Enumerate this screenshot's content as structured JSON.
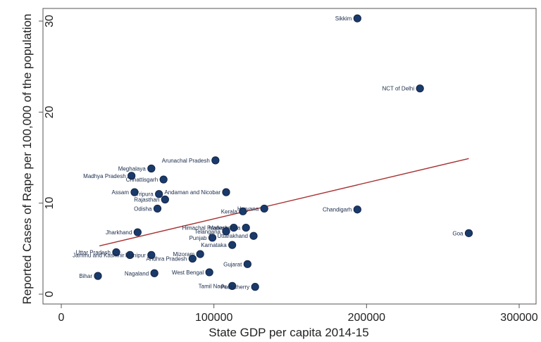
{
  "chart_data": {
    "type": "scatter",
    "title": "",
    "xlabel": "State GDP per capita 2014-15",
    "ylabel": "Reported Cases of Rape per 100,000 of the population",
    "xlim": [
      0,
      300000
    ],
    "ylim": [
      0,
      30
    ],
    "x_ticks": [
      0,
      100000,
      200000,
      300000
    ],
    "x_tick_labels": [
      "0",
      "100000",
      "200000",
      "300000"
    ],
    "y_ticks": [
      0,
      10,
      20,
      30
    ],
    "y_tick_labels": [
      "0",
      "10",
      "20",
      "30"
    ],
    "grid": false,
    "point_color": "#1a3a6b",
    "fit_color": "#a83232",
    "fit_line": {
      "x": [
        25000,
        267000
      ],
      "y": [
        5.3,
        14.9
      ]
    },
    "series": [
      {
        "name": "States",
        "points": [
          {
            "label": "Sikkim",
            "x": 194000,
            "y": 30.3
          },
          {
            "label": "NCT of Delhi",
            "x": 235000,
            "y": 22.6
          },
          {
            "label": "Arunachal Pradesh",
            "x": 101000,
            "y": 14.7
          },
          {
            "label": "Meghalaya",
            "x": 59000,
            "y": 13.8
          },
          {
            "label": "Madhya Pradesh",
            "x": 46000,
            "y": 13.0
          },
          {
            "label": "Chhattisgarh",
            "x": 67000,
            "y": 12.6
          },
          {
            "label": "Assam",
            "x": 48000,
            "y": 11.2
          },
          {
            "label": "Tripura",
            "x": 64000,
            "y": 11.0
          },
          {
            "label": "Andaman and Nicobar",
            "x": 108000,
            "y": 11.2
          },
          {
            "label": "Rajasthan",
            "x": 68000,
            "y": 10.4
          },
          {
            "label": "Odisha",
            "x": 63000,
            "y": 9.4
          },
          {
            "label": "Haryana",
            "x": 133000,
            "y": 9.4
          },
          {
            "label": "Kerala",
            "x": 119000,
            "y": 9.1
          },
          {
            "label": "Chandigarh",
            "x": 194000,
            "y": 9.3
          },
          {
            "label": "Goa",
            "x": 267000,
            "y": 6.7
          },
          {
            "label": "Jharkhand",
            "x": 50000,
            "y": 6.8
          },
          {
            "label": "Himachal Pradesh",
            "x": 113000,
            "y": 7.3
          },
          {
            "label": "Maharashtra",
            "x": 121000,
            "y": 7.3
          },
          {
            "label": "Telangana",
            "x": 108000,
            "y": 6.9
          },
          {
            "label": "Uttarakhand",
            "x": 126000,
            "y": 6.4
          },
          {
            "label": "Punjab",
            "x": 99000,
            "y": 6.2
          },
          {
            "label": "Karnataka",
            "x": 112000,
            "y": 5.4
          },
          {
            "label": "Uttar Pradesh",
            "x": 36000,
            "y": 4.6
          },
          {
            "label": "Jammu and Kashmir",
            "x": 45000,
            "y": 4.3
          },
          {
            "label": "Manipur",
            "x": 59000,
            "y": 4.3
          },
          {
            "label": "Mizoram",
            "x": 91000,
            "y": 4.4
          },
          {
            "label": "Andhra Pradesh",
            "x": 86000,
            "y": 3.9
          },
          {
            "label": "Gujarat",
            "x": 122000,
            "y": 3.3
          },
          {
            "label": "West Bengal",
            "x": 97000,
            "y": 2.4
          },
          {
            "label": "Nagaland",
            "x": 61000,
            "y": 2.3
          },
          {
            "label": "Bihar",
            "x": 24000,
            "y": 2.0
          },
          {
            "label": "Tamil Nadu",
            "x": 112000,
            "y": 0.9
          },
          {
            "label": "Puducherry",
            "x": 127000,
            "y": 0.8
          }
        ]
      }
    ]
  }
}
